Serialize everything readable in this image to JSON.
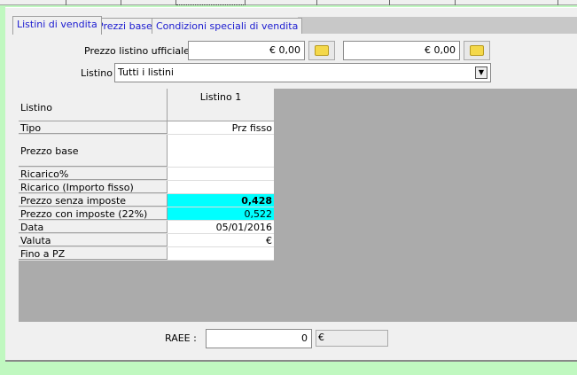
{
  "tabs": [
    {
      "label": "Listini di vendita",
      "active": true
    },
    {
      "label": "Prezzi base"
    },
    {
      "label": "Condizioni speciali di vendita"
    }
  ],
  "prezzo_listino": {
    "label": "Prezzo listino ufficiale :",
    "value1": "€ 0,00",
    "value2": "€ 0,00",
    "button_icon": "folder-icon"
  },
  "listino": {
    "label": "Listino :",
    "value": "Tutti i listini"
  },
  "grid": {
    "header_label": "Listino",
    "column": "Listino 1",
    "highlight_color": "#00ffff",
    "rows": [
      {
        "label": "Tipo",
        "value": "Prz fisso"
      },
      {
        "label": "Prezzo base",
        "value": ""
      },
      {
        "label": "Ricarico%",
        "value": ""
      },
      {
        "label": "Ricarico (Importo fisso)",
        "value": ""
      },
      {
        "label": "Prezzo senza imposte",
        "value": "0,428",
        "highlight": true,
        "bold": true
      },
      {
        "label": "Prezzo con imposte (22%)",
        "value": "0,522",
        "highlight": true
      },
      {
        "label": "Data",
        "value": "05/01/2016"
      },
      {
        "label": "Valuta",
        "value": "€"
      },
      {
        "label": "Fino a PZ",
        "value": ""
      }
    ]
  },
  "raee": {
    "label": "RAEE :",
    "value": "0",
    "currency": "€"
  }
}
